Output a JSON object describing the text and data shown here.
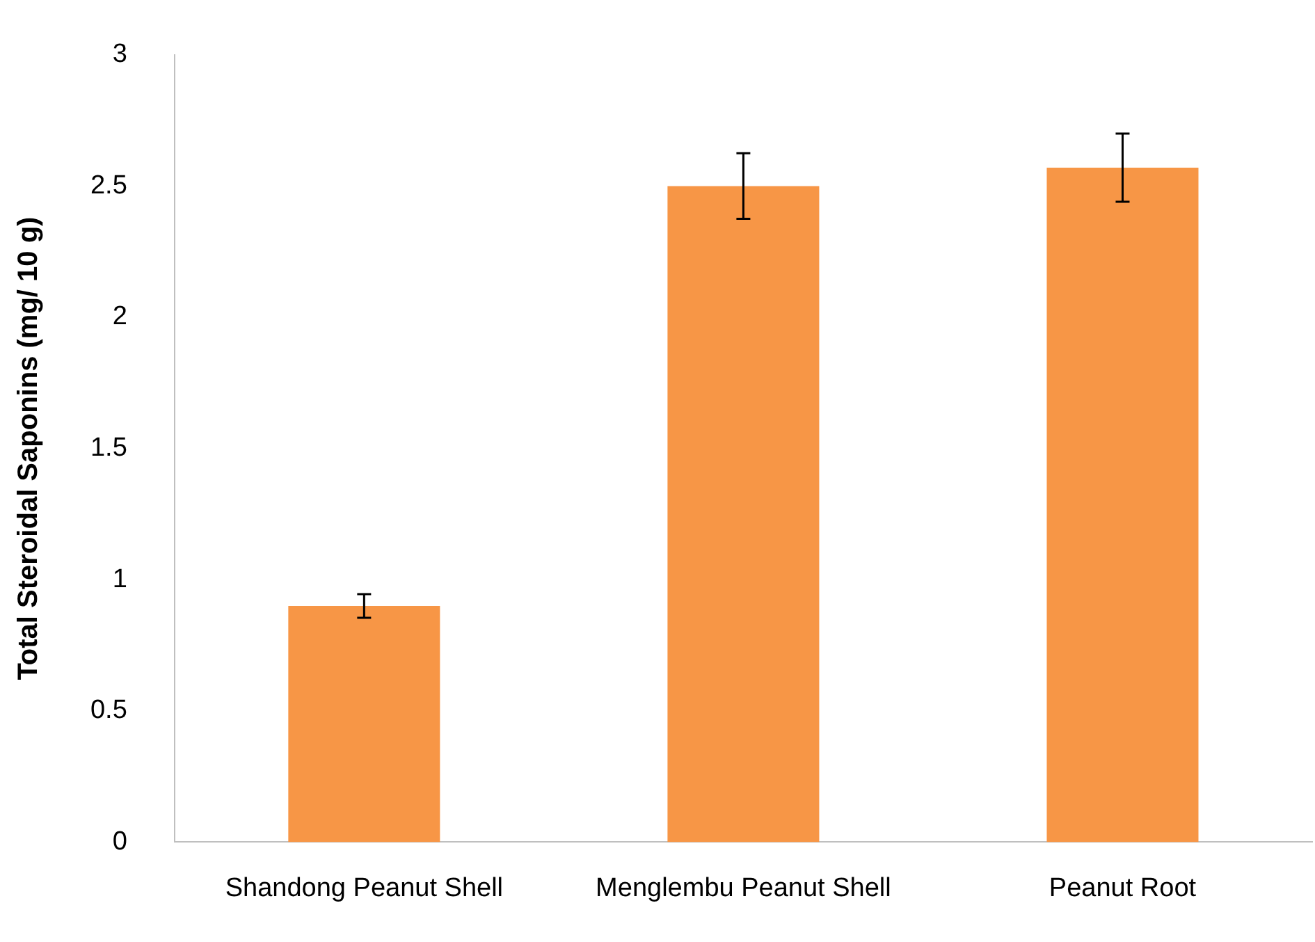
{
  "chart_data": {
    "type": "bar",
    "ylabel": "Total Steroidal Saponins (mg/ 10 g)",
    "categories": [
      "Shandong Peanut Shell",
      "Menglembu Peanut Shell",
      "Peanut Root"
    ],
    "values": [
      0.9,
      2.5,
      2.57
    ],
    "errors": [
      0.045,
      0.125,
      0.13
    ],
    "color": "#f79646",
    "ylim": [
      0,
      3
    ],
    "yticks": [
      0,
      0.5,
      1,
      1.5,
      2,
      2.5,
      3
    ],
    "grid": false,
    "legend": false
  }
}
